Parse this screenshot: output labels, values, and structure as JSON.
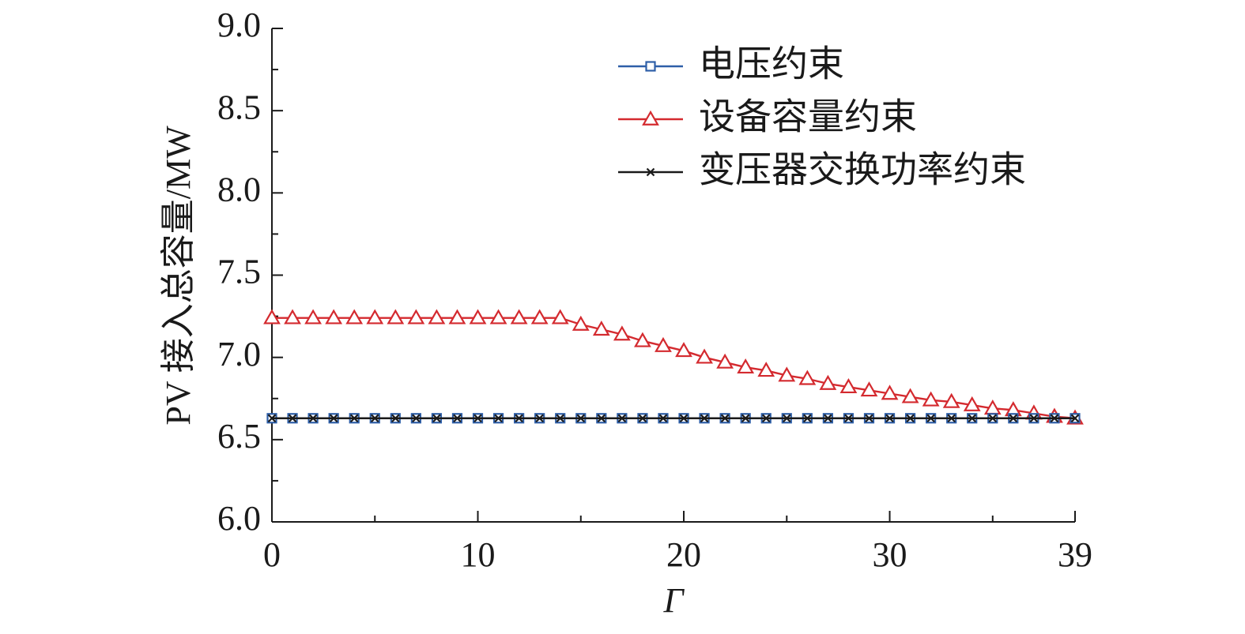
{
  "chart_data": {
    "type": "line",
    "title": "",
    "xlabel": "Γ",
    "ylabel": "PV 接入总容量/MW",
    "xlim": [
      0,
      39
    ],
    "ylim": [
      6.0,
      9.0
    ],
    "xticks": [
      "0",
      "10",
      "20",
      "30",
      "39"
    ],
    "yticks": [
      "6.0",
      "6.5",
      "7.0",
      "7.5",
      "8.0",
      "8.5",
      "9.0"
    ],
    "grid": false,
    "legend_position": "top-right",
    "x": [
      0,
      1,
      2,
      3,
      4,
      5,
      6,
      7,
      8,
      9,
      10,
      11,
      12,
      13,
      14,
      15,
      16,
      17,
      18,
      19,
      20,
      21,
      22,
      23,
      24,
      25,
      26,
      27,
      28,
      29,
      30,
      31,
      32,
      33,
      34,
      35,
      36,
      37,
      38,
      39
    ],
    "series": [
      {
        "name": "电压约束",
        "color": "#2e5fa8",
        "marker": "square",
        "values": [
          6.63,
          6.63,
          6.63,
          6.63,
          6.63,
          6.63,
          6.63,
          6.63,
          6.63,
          6.63,
          6.63,
          6.63,
          6.63,
          6.63,
          6.63,
          6.63,
          6.63,
          6.63,
          6.63,
          6.63,
          6.63,
          6.63,
          6.63,
          6.63,
          6.63,
          6.63,
          6.63,
          6.63,
          6.63,
          6.63,
          6.63,
          6.63,
          6.63,
          6.63,
          6.63,
          6.63,
          6.63,
          6.63,
          6.63,
          6.63
        ]
      },
      {
        "name": "设备容量约束",
        "color": "#d42a2f",
        "marker": "triangle",
        "values": [
          7.24,
          7.24,
          7.24,
          7.24,
          7.24,
          7.24,
          7.24,
          7.24,
          7.24,
          7.24,
          7.24,
          7.24,
          7.24,
          7.24,
          7.24,
          7.2,
          7.17,
          7.14,
          7.1,
          7.07,
          7.04,
          7.0,
          6.97,
          6.94,
          6.92,
          6.89,
          6.87,
          6.84,
          6.82,
          6.8,
          6.78,
          6.76,
          6.74,
          6.73,
          6.71,
          6.69,
          6.68,
          6.66,
          6.64,
          6.63
        ]
      },
      {
        "name": "变压器交换功率约束",
        "color": "#1a1a1a",
        "marker": "x",
        "values": [
          6.63,
          6.63,
          6.63,
          6.63,
          6.63,
          6.63,
          6.63,
          6.63,
          6.63,
          6.63,
          6.63,
          6.63,
          6.63,
          6.63,
          6.63,
          6.63,
          6.63,
          6.63,
          6.63,
          6.63,
          6.63,
          6.63,
          6.63,
          6.63,
          6.63,
          6.63,
          6.63,
          6.63,
          6.63,
          6.63,
          6.63,
          6.63,
          6.63,
          6.63,
          6.63,
          6.63,
          6.63,
          6.63,
          6.63,
          6.63
        ]
      }
    ]
  }
}
